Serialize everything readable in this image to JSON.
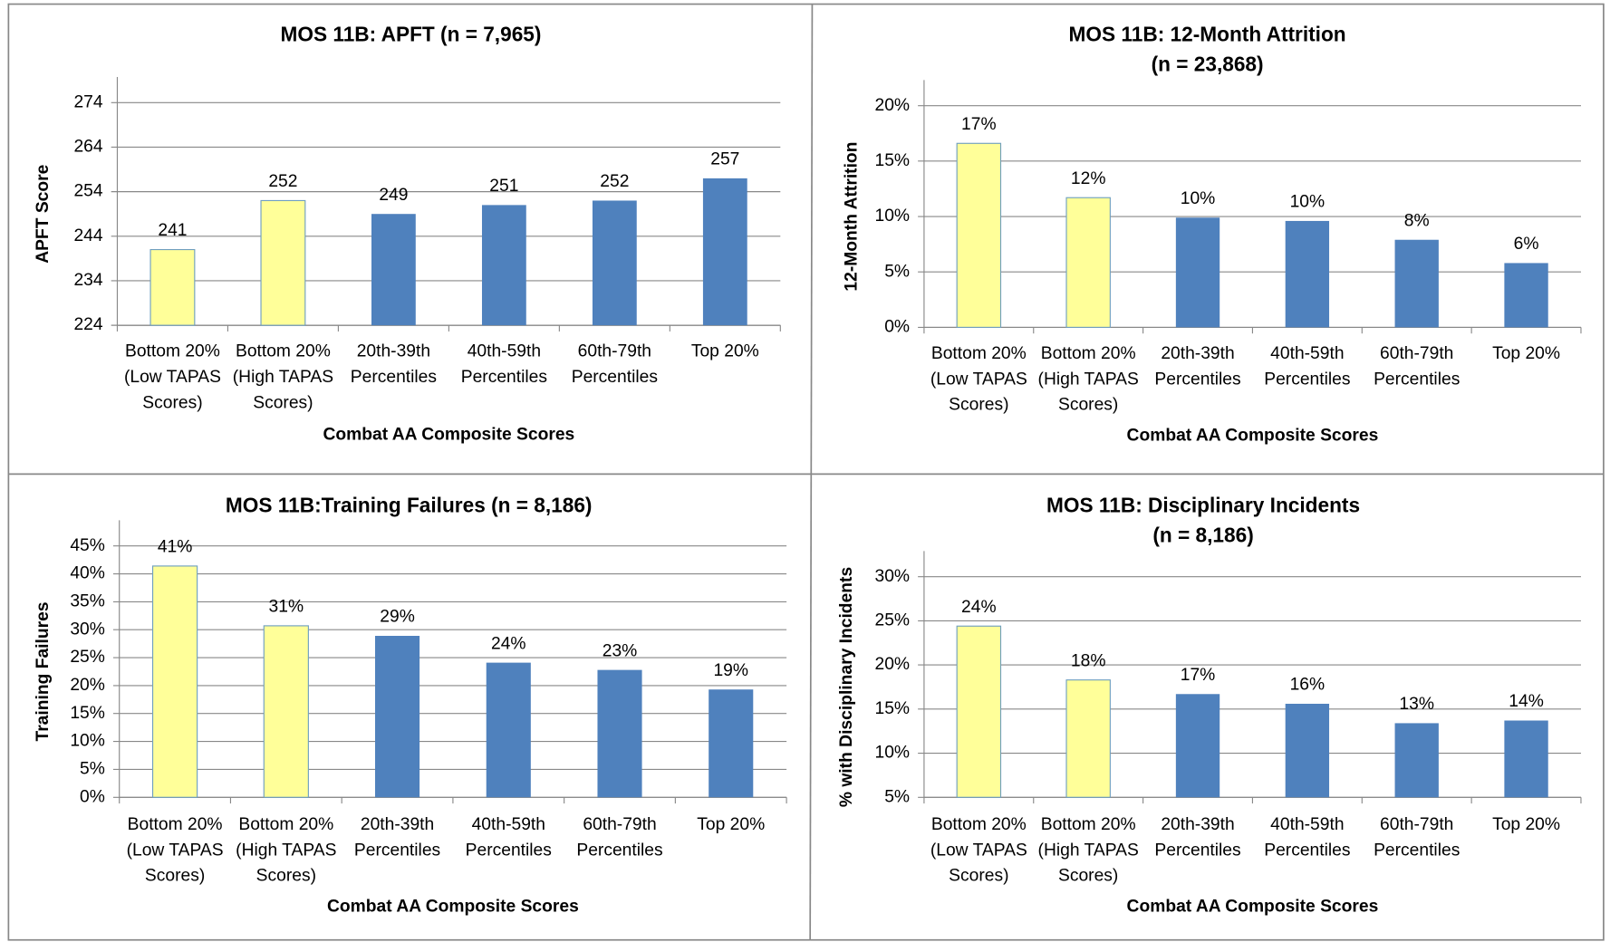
{
  "chart_data": [
    {
      "type": "bar",
      "title": [
        "MOS 11B: APFT (n = 7,965)"
      ],
      "categories": [
        [
          "Bottom 20%",
          "(Low TAPAS",
          "Scores)"
        ],
        [
          "Bottom 20%",
          "(High TAPAS",
          "Scores)"
        ],
        [
          "20th-39th",
          "Percentiles"
        ],
        [
          "40th-59th",
          "Percentiles"
        ],
        [
          "60th-79th",
          "Percentiles"
        ],
        [
          "Top 20%"
        ]
      ],
      "values": [
        241,
        252,
        249,
        251,
        252,
        257
      ],
      "colors": [
        "#ffff99",
        "#ffff99",
        "#4f81bd",
        "#4f81bd",
        "#4f81bd",
        "#4f81bd"
      ],
      "x_label": "Combat AA Composite Scores",
      "y_label": "APFT Score",
      "ylim": [
        224,
        274
      ],
      "yticks": [
        224,
        234,
        244,
        254,
        264,
        274
      ],
      "grid": true
    },
    {
      "type": "bar",
      "title": [
        "MOS 11B:  12-Month Attrition",
        "(n = 23,868)"
      ],
      "categories": [
        [
          "Bottom 20%",
          "(Low TAPAS",
          "Scores)"
        ],
        [
          "Bottom 20%",
          "(High TAPAS",
          "Scores)"
        ],
        [
          "20th-39th",
          "Percentiles"
        ],
        [
          "40th-59th",
          "Percentiles"
        ],
        [
          "60th-79th",
          "Percentiles"
        ],
        [
          "Top 20%"
        ]
      ],
      "values": [
        16.6,
        11.7,
        9.9,
        9.6,
        7.9,
        5.8
      ],
      "value_labels": [
        "17%",
        "12%",
        "10%",
        "10%",
        "8%",
        "6%"
      ],
      "colors": [
        "#ffff99",
        "#ffff99",
        "#4f81bd",
        "#4f81bd",
        "#4f81bd",
        "#4f81bd"
      ],
      "x_label": "Combat AA Composite Scores",
      "y_label": "12-Month Attrition",
      "ylim": [
        0,
        20
      ],
      "yticks": [
        {
          "value": 0,
          "label": "0%"
        },
        {
          "value": 5,
          "label": "5%"
        },
        {
          "value": 10,
          "label": "10%"
        },
        {
          "value": 15,
          "label": "15%"
        },
        {
          "value": 20,
          "label": "20%"
        }
      ],
      "grid": true
    },
    {
      "type": "bar",
      "title": [
        "MOS 11B:Training Failures (n = 8,186)"
      ],
      "categories": [
        [
          "Bottom 20%",
          "(Low TAPAS",
          "Scores)"
        ],
        [
          "Bottom 20%",
          "(High TAPAS",
          "Scores)"
        ],
        [
          "20th-39th",
          "Percentiles"
        ],
        [
          "40th-59th",
          "Percentiles"
        ],
        [
          "60th-79th",
          "Percentiles"
        ],
        [
          "Top 20%"
        ]
      ],
      "values": [
        41.4,
        30.7,
        28.9,
        24.1,
        22.8,
        19.3
      ],
      "value_labels": [
        "41%",
        "31%",
        "29%",
        "24%",
        "23%",
        "19%"
      ],
      "colors": [
        "#ffff99",
        "#ffff99",
        "#4f81bd",
        "#4f81bd",
        "#4f81bd",
        "#4f81bd"
      ],
      "x_label": "Combat AA Composite Scores",
      "y_label": "Training Failures",
      "ylim": [
        0,
        45
      ],
      "yticks": [
        {
          "value": 0,
          "label": "0%"
        },
        {
          "value": 5,
          "label": "5%"
        },
        {
          "value": 10,
          "label": "10%"
        },
        {
          "value": 15,
          "label": "15%"
        },
        {
          "value": 20,
          "label": "20%"
        },
        {
          "value": 25,
          "label": "25%"
        },
        {
          "value": 30,
          "label": "30%"
        },
        {
          "value": 35,
          "label": "35%"
        },
        {
          "value": 40,
          "label": "40%"
        },
        {
          "value": 45,
          "label": "45%"
        }
      ],
      "grid": true
    },
    {
      "type": "bar",
      "title": [
        "MOS 11B: Disciplinary Incidents",
        "(n = 8,186)"
      ],
      "categories": [
        [
          "Bottom 20%",
          "(Low TAPAS",
          "Scores)"
        ],
        [
          "Bottom 20%",
          "(High TAPAS",
          "Scores)"
        ],
        [
          "20th-39th",
          "Percentiles"
        ],
        [
          "40th-59th",
          "Percentiles"
        ],
        [
          "60th-79th",
          "Percentiles"
        ],
        [
          "Top 20%"
        ]
      ],
      "values": [
        24.4,
        18.3,
        16.7,
        15.6,
        13.4,
        13.7
      ],
      "value_labels": [
        "24%",
        "18%",
        "17%",
        "16%",
        "13%",
        "14%"
      ],
      "colors": [
        "#ffff99",
        "#ffff99",
        "#4f81bd",
        "#4f81bd",
        "#4f81bd",
        "#4f81bd"
      ],
      "x_label": "Combat AA Composite Scores",
      "y_label": "% with Disciplinary Incidents",
      "ylim": [
        5,
        30
      ],
      "yticks": [
        {
          "value": 5,
          "label": "5%"
        },
        {
          "value": 10,
          "label": "10%"
        },
        {
          "value": 15,
          "label": "15%"
        },
        {
          "value": 20,
          "label": "20%"
        },
        {
          "value": 25,
          "label": "25%"
        },
        {
          "value": 30,
          "label": "30%"
        }
      ],
      "grid": true
    }
  ]
}
